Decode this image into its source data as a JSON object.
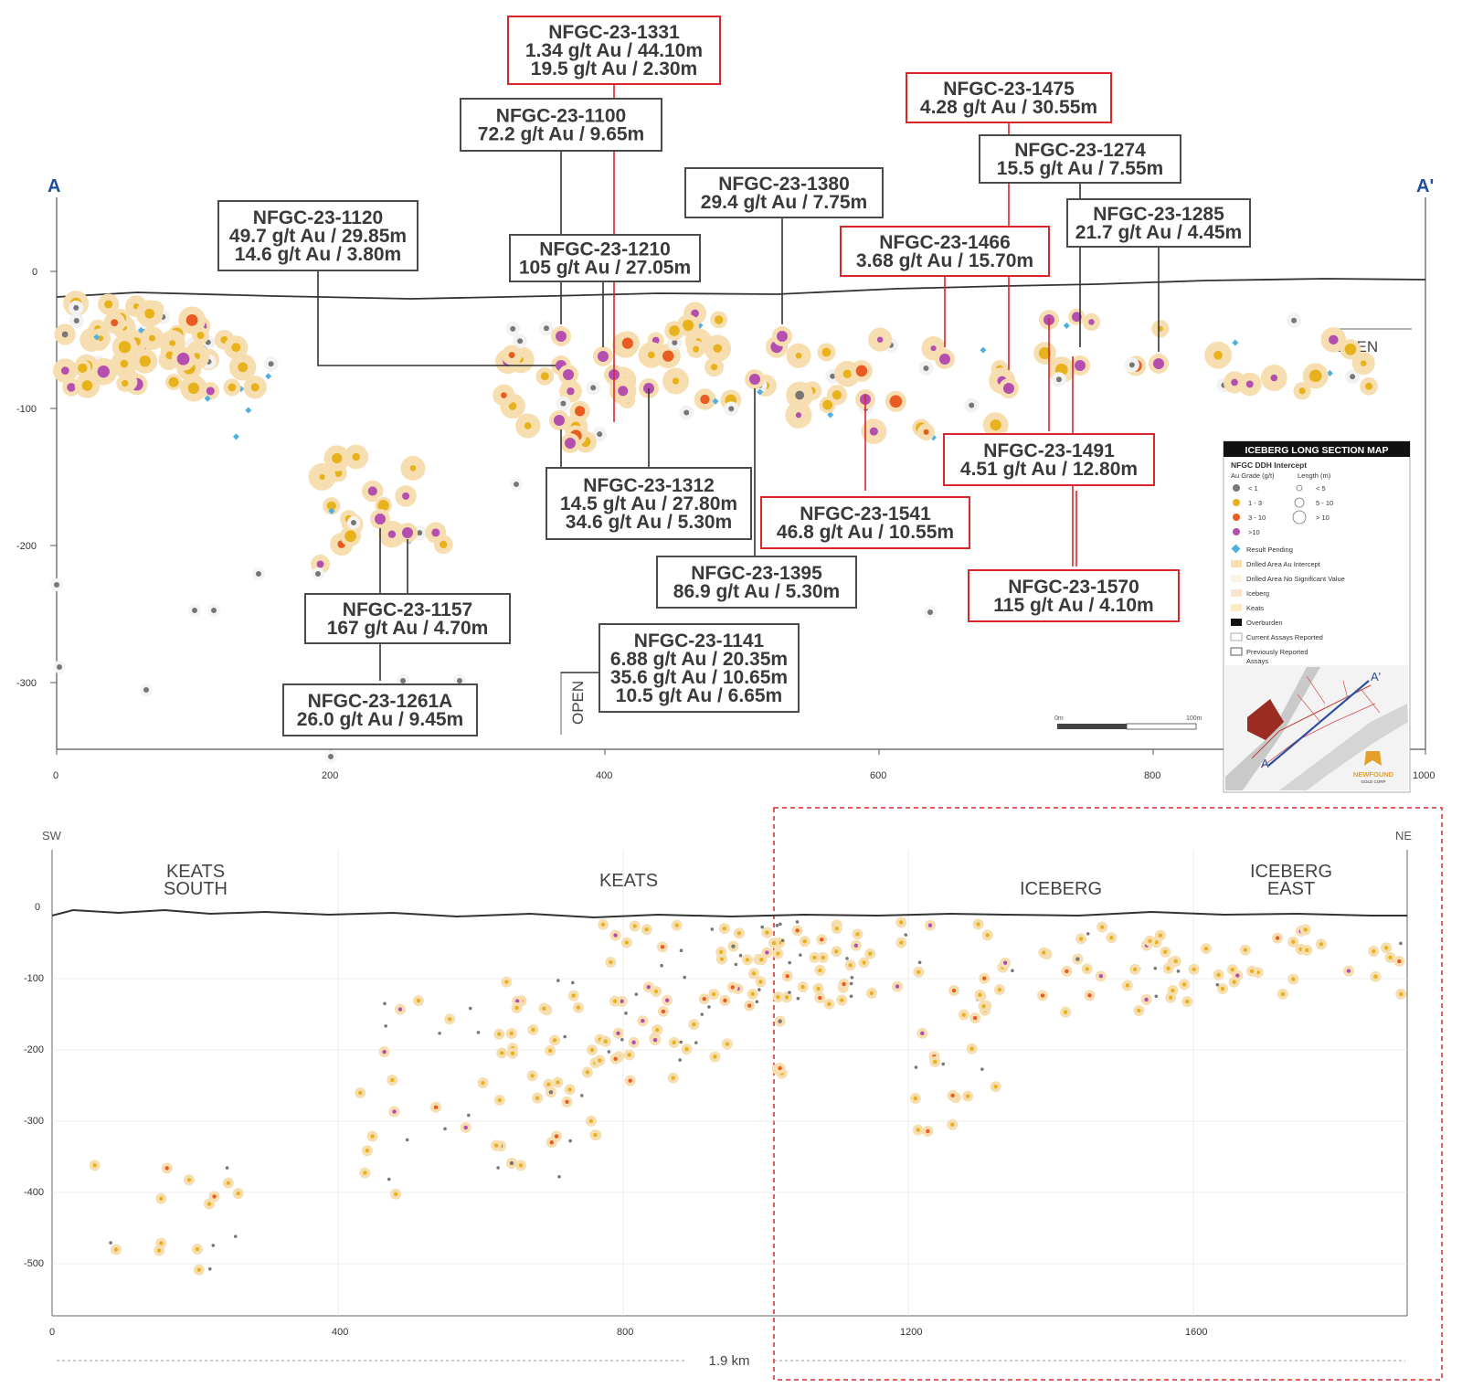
{
  "top_section": {
    "end_left": "A",
    "end_right": "A'",
    "x_ticks": [
      "0",
      "200",
      "400",
      "600",
      "800",
      "1000"
    ],
    "y_ticks": [
      "0",
      "-100",
      "-200",
      "-300"
    ],
    "open_labels": [
      "OPEN",
      "OPEN"
    ],
    "scale_bar": {
      "left": "0m",
      "right": "100m"
    }
  },
  "callouts": [
    {
      "id": "1331",
      "lines": [
        "NFGC-23-1331",
        "1.34 g/t Au / 44.10m",
        "19.5 g/t Au / 2.30m"
      ],
      "color": "red"
    },
    {
      "id": "1100",
      "lines": [
        "NFGC-23-1100",
        "72.2 g/t Au / 9.65m"
      ],
      "color": "grey"
    },
    {
      "id": "1475",
      "lines": [
        "NFGC-23-1475",
        "4.28 g/t Au / 30.55m"
      ],
      "color": "red"
    },
    {
      "id": "1274",
      "lines": [
        "NFGC-23-1274",
        "15.5 g/t Au / 7.55m"
      ],
      "color": "grey"
    },
    {
      "id": "1380",
      "lines": [
        "NFGC-23-1380",
        "29.4 g/t Au / 7.75m"
      ],
      "color": "grey"
    },
    {
      "id": "1285",
      "lines": [
        "NFGC-23-1285",
        "21.7 g/t Au / 4.45m"
      ],
      "color": "grey"
    },
    {
      "id": "1120",
      "lines": [
        "NFGC-23-1120",
        "49.7 g/t Au / 29.85m",
        "14.6 g/t Au / 3.80m"
      ],
      "color": "grey"
    },
    {
      "id": "1210",
      "lines": [
        "NFGC-23-1210",
        "105 g/t Au / 27.05m"
      ],
      "color": "grey"
    },
    {
      "id": "1466",
      "lines": [
        "NFGC-23-1466",
        "3.68 g/t Au / 15.70m"
      ],
      "color": "red"
    },
    {
      "id": "1491",
      "lines": [
        "NFGC-23-1491",
        "4.51 g/t Au / 12.80m"
      ],
      "color": "red"
    },
    {
      "id": "1312",
      "lines": [
        "NFGC-23-1312",
        "14.5 g/t Au / 27.80m",
        "34.6 g/t Au / 5.30m"
      ],
      "color": "grey"
    },
    {
      "id": "1541",
      "lines": [
        "NFGC-23-1541",
        "46.8 g/t Au / 10.55m"
      ],
      "color": "red"
    },
    {
      "id": "1395",
      "lines": [
        "NFGC-23-1395",
        "86.9 g/t Au / 5.30m"
      ],
      "color": "grey"
    },
    {
      "id": "1570",
      "lines": [
        "NFGC-23-1570",
        "115 g/t Au / 4.10m"
      ],
      "color": "red"
    },
    {
      "id": "1157",
      "lines": [
        "NFGC-23-1157",
        "167 g/t  Au / 4.70m"
      ],
      "color": "grey"
    },
    {
      "id": "1141",
      "lines": [
        "NFGC-23-1141",
        "6.88 g/t Au / 20.35m",
        "35.6 g/t Au / 10.65m",
        "10.5 g/t Au / 6.65m"
      ],
      "color": "grey"
    },
    {
      "id": "1261A",
      "lines": [
        "NFGC-23-1261A",
        "26.0 g/t Au / 9.45m"
      ],
      "color": "grey"
    }
  ],
  "legend": {
    "title": "ICEBERG LONG SECTION MAP",
    "subtitle": "NFGC DDH Intercept",
    "grade_header": "Au Grade (g/t)",
    "length_header": "Length (m)",
    "grades": [
      {
        "label": "< 1",
        "color": "#777777"
      },
      {
        "label": "1 - 3",
        "color": "#e8b21c"
      },
      {
        "label": "3 - 10",
        "color": "#ea5b22"
      },
      {
        "label": ">10",
        "color": "#b44fb0"
      }
    ],
    "lengths": [
      "< 5",
      "5 - 10",
      "> 10"
    ],
    "items": [
      "Result Pending",
      "Drilled Area Au Intercept",
      "Drilled Area No Significant Value",
      "Iceberg",
      "Keats",
      "Overburden",
      "Current Assays Reported",
      "Previously Reported Assays"
    ],
    "inset_labels": [
      "A",
      "A'"
    ],
    "logo_text": "NEWFOUND",
    "logo_sub": "GOLD CORP"
  },
  "bottom_section": {
    "end_left": "SW",
    "end_right": "NE",
    "regions": [
      {
        "lines": [
          "KEATS",
          "SOUTH"
        ]
      },
      {
        "lines": [
          "KEATS"
        ]
      },
      {
        "lines": [
          "ICEBERG"
        ]
      },
      {
        "lines": [
          "ICEBERG",
          "EAST"
        ]
      }
    ],
    "x_ticks": [
      "0",
      "400",
      "800",
      "1200",
      "1600"
    ],
    "y_ticks": [
      "0",
      "-100",
      "-200",
      "-300",
      "-400",
      "-500"
    ],
    "distance": "1.9 km"
  },
  "colors": {
    "red_box": "#d9262b",
    "grey_box": "#4a4a4a",
    "blue_label": "#1f4e9c",
    "halo": "#f6deb0",
    "pending": "#4fb0e0"
  }
}
